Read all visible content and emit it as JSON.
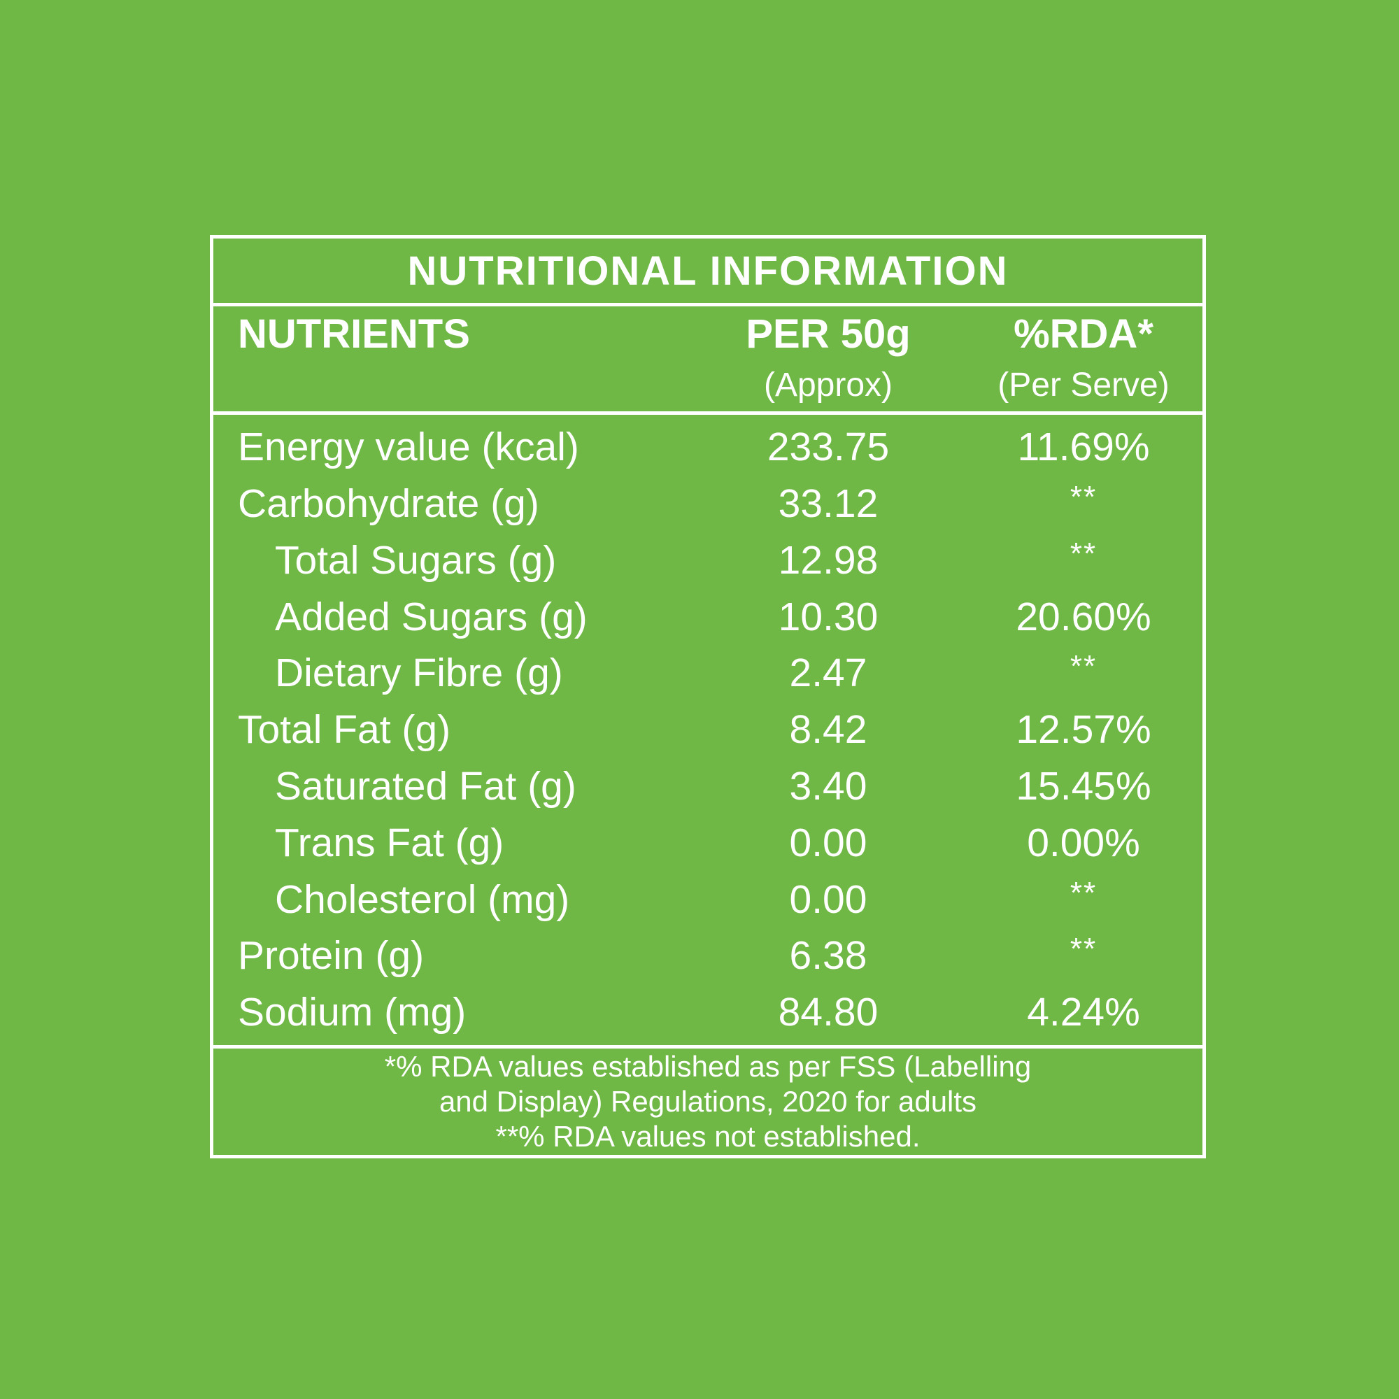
{
  "colors": {
    "background": "#70B846",
    "border": "#FFFFFF",
    "text": "#FFFFFF"
  },
  "table": {
    "title": "NUTRITIONAL INFORMATION",
    "header": {
      "nutrients_label": "NUTRIENTS",
      "per_serving_label": "PER 50g",
      "per_serving_sub": "(Approx)",
      "rda_label": "%RDA*",
      "rda_sub": "(Per Serve)"
    },
    "rows": [
      {
        "label": "Energy value (kcal)",
        "indent": false,
        "per50g": "233.75",
        "rda": "11.69%"
      },
      {
        "label": "Carbohydrate (g)",
        "indent": false,
        "per50g": "33.12",
        "rda": "**"
      },
      {
        "label": "Total Sugars (g)",
        "indent": true,
        "per50g": "12.98",
        "rda": "**"
      },
      {
        "label": "Added Sugars (g)",
        "indent": true,
        "per50g": "10.30",
        "rda": "20.60%"
      },
      {
        "label": "Dietary Fibre (g)",
        "indent": true,
        "per50g": "2.47",
        "rda": "**"
      },
      {
        "label": "Total Fat (g)",
        "indent": false,
        "per50g": "8.42",
        "rda": "12.57%"
      },
      {
        "label": "Saturated Fat (g)",
        "indent": true,
        "per50g": "3.40",
        "rda": "15.45%"
      },
      {
        "label": "Trans Fat (g)",
        "indent": true,
        "per50g": "0.00",
        "rda": "0.00%"
      },
      {
        "label": "Cholesterol (mg)",
        "indent": true,
        "per50g": "0.00",
        "rda": "**"
      },
      {
        "label": "Protein (g)",
        "indent": false,
        "per50g": "6.38",
        "rda": "**"
      },
      {
        "label": "Sodium (mg)",
        "indent": false,
        "per50g": "84.80",
        "rda": "4.24%"
      }
    ],
    "footnotes": [
      "*% RDA values established as per FSS (Labelling",
      "and Display) Regulations, 2020 for adults",
      "**% RDA values not established."
    ]
  }
}
